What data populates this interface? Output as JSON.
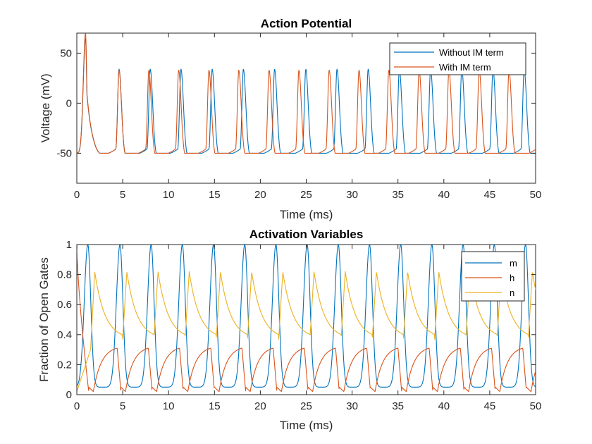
{
  "colors": {
    "blue": "#0072BD",
    "orange": "#D95319",
    "yellow": "#EDB120"
  },
  "chart_data": [
    {
      "type": "line",
      "title": "Action Potential",
      "xlabel": "Time (ms)",
      "ylabel": "Voltage (mV)",
      "xlim": [
        0,
        50
      ],
      "ylim": [
        -80,
        70
      ],
      "xticks": [
        0,
        5,
        10,
        15,
        20,
        25,
        30,
        35,
        40,
        45,
        50
      ],
      "yticks": [
        -50,
        0,
        50
      ],
      "legend": "top-right",
      "series": [
        {
          "name": "Without IM term",
          "color": "#0072BD",
          "shape": "spike",
          "rest": -55,
          "peak": 34,
          "first_spike": {
            "t": 0.95,
            "peak": 65
          },
          "spike_times": [
            4.6,
            8.0,
            11.35,
            14.75,
            18.15,
            21.55,
            24.95,
            28.35,
            31.75,
            35.15,
            38.55,
            41.95,
            45.35,
            48.75
          ]
        },
        {
          "name": "With IM term",
          "color": "#D95319",
          "shape": "spike",
          "rest": -55,
          "peak": 33,
          "first_spike": {
            "t": 0.95,
            "peak": 70
          },
          "spike_times": [
            4.6,
            7.85,
            11.1,
            14.4,
            17.65,
            20.95,
            24.2,
            27.5,
            30.75,
            34.0,
            37.3,
            40.55,
            43.85,
            47.1,
            50.4
          ]
        }
      ]
    },
    {
      "type": "line",
      "title": "Activation Variables",
      "xlabel": "Time (ms)",
      "ylabel": "Fraction of Open Gates",
      "xlim": [
        0,
        50
      ],
      "ylim": [
        0,
        1
      ],
      "xticks": [
        0,
        5,
        10,
        15,
        20,
        25,
        30,
        35,
        40,
        45,
        50
      ],
      "yticks": [
        0,
        0.2,
        0.4,
        0.6,
        0.8,
        1
      ],
      "legend": "top-right",
      "series": [
        {
          "name": "m",
          "color": "#0072BD",
          "shape": "pulse",
          "base": 0.05,
          "peak": 1.0,
          "spike_times": [
            1.2,
            4.7,
            8.1,
            11.5,
            14.9,
            18.3,
            21.7,
            25.1,
            28.5,
            31.9,
            35.3,
            38.7,
            42.1,
            45.5,
            48.9
          ]
        },
        {
          "name": "h",
          "color": "#D95319",
          "shape": "hump",
          "low": 0.02,
          "peak": 0.31,
          "start": 1.0,
          "spike_times": [
            1.3,
            4.8,
            8.2,
            11.6,
            15.0,
            18.4,
            21.8,
            25.2,
            28.6,
            32.0,
            35.4,
            38.8,
            42.2,
            45.6,
            49.0
          ]
        },
        {
          "name": "n",
          "color": "#EDB120",
          "shape": "recovery",
          "low": 0.37,
          "peak": 0.82,
          "start": 0.02,
          "spike_times": [
            1.5,
            5.0,
            8.4,
            11.8,
            15.2,
            18.6,
            22.0,
            25.4,
            28.8,
            32.2,
            35.6,
            39.0,
            42.4,
            45.8,
            49.2
          ]
        }
      ]
    }
  ]
}
